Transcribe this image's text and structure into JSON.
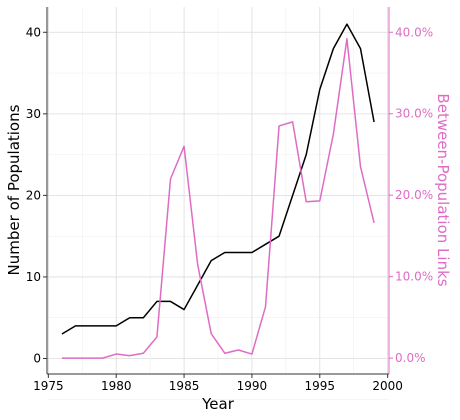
{
  "chart_data": {
    "type": "line",
    "title": "",
    "xlabel": "Year",
    "ylabel": "Number of Populations",
    "y2label": "Between-Population Links",
    "xlim": [
      1974.9,
      2000.1
    ],
    "ylim": [
      -1.9,
      43.1
    ],
    "y2lim": [
      -1.95,
      43.1
    ],
    "xticks": [
      1975,
      1980,
      1985,
      1990,
      1995,
      2000
    ],
    "yticks": [
      0,
      10,
      20,
      30,
      40
    ],
    "y2ticks": [
      0,
      10,
      20,
      30,
      40
    ],
    "y2tick_labels": [
      "0.0%",
      "10.0%",
      "20.0%",
      "30.0%",
      "40.0%"
    ],
    "grid": true,
    "colors": {
      "populations": "#000000",
      "links": "#de6cc5",
      "axis": "#333333",
      "grid_major": "#dcdcdc",
      "grid_minor": "#efefef"
    },
    "x": [
      1976,
      1977,
      1978,
      1979,
      1980,
      1981,
      1982,
      1983,
      1984,
      1985,
      1986,
      1987,
      1988,
      1989,
      1990,
      1991,
      1992,
      1993,
      1994,
      1995,
      1996,
      1997,
      1998,
      1999
    ],
    "series": [
      {
        "axis": "left",
        "values": [
          3,
          4,
          4,
          4,
          4,
          5,
          5,
          7,
          7,
          6,
          9,
          12,
          13,
          13,
          13,
          14,
          15,
          20,
          25,
          33,
          38,
          41,
          38,
          29
        ]
      },
      {
        "axis": "right",
        "values": [
          0.0,
          0.0,
          0.0,
          0.0,
          0.5,
          0.3,
          0.6,
          2.6,
          22.0,
          26.0,
          11.5,
          3.0,
          0.6,
          1.0,
          0.5,
          6.3,
          28.5,
          29.0,
          19.2,
          19.3,
          27.5,
          39.2,
          23.5,
          16.6
        ]
      }
    ]
  }
}
